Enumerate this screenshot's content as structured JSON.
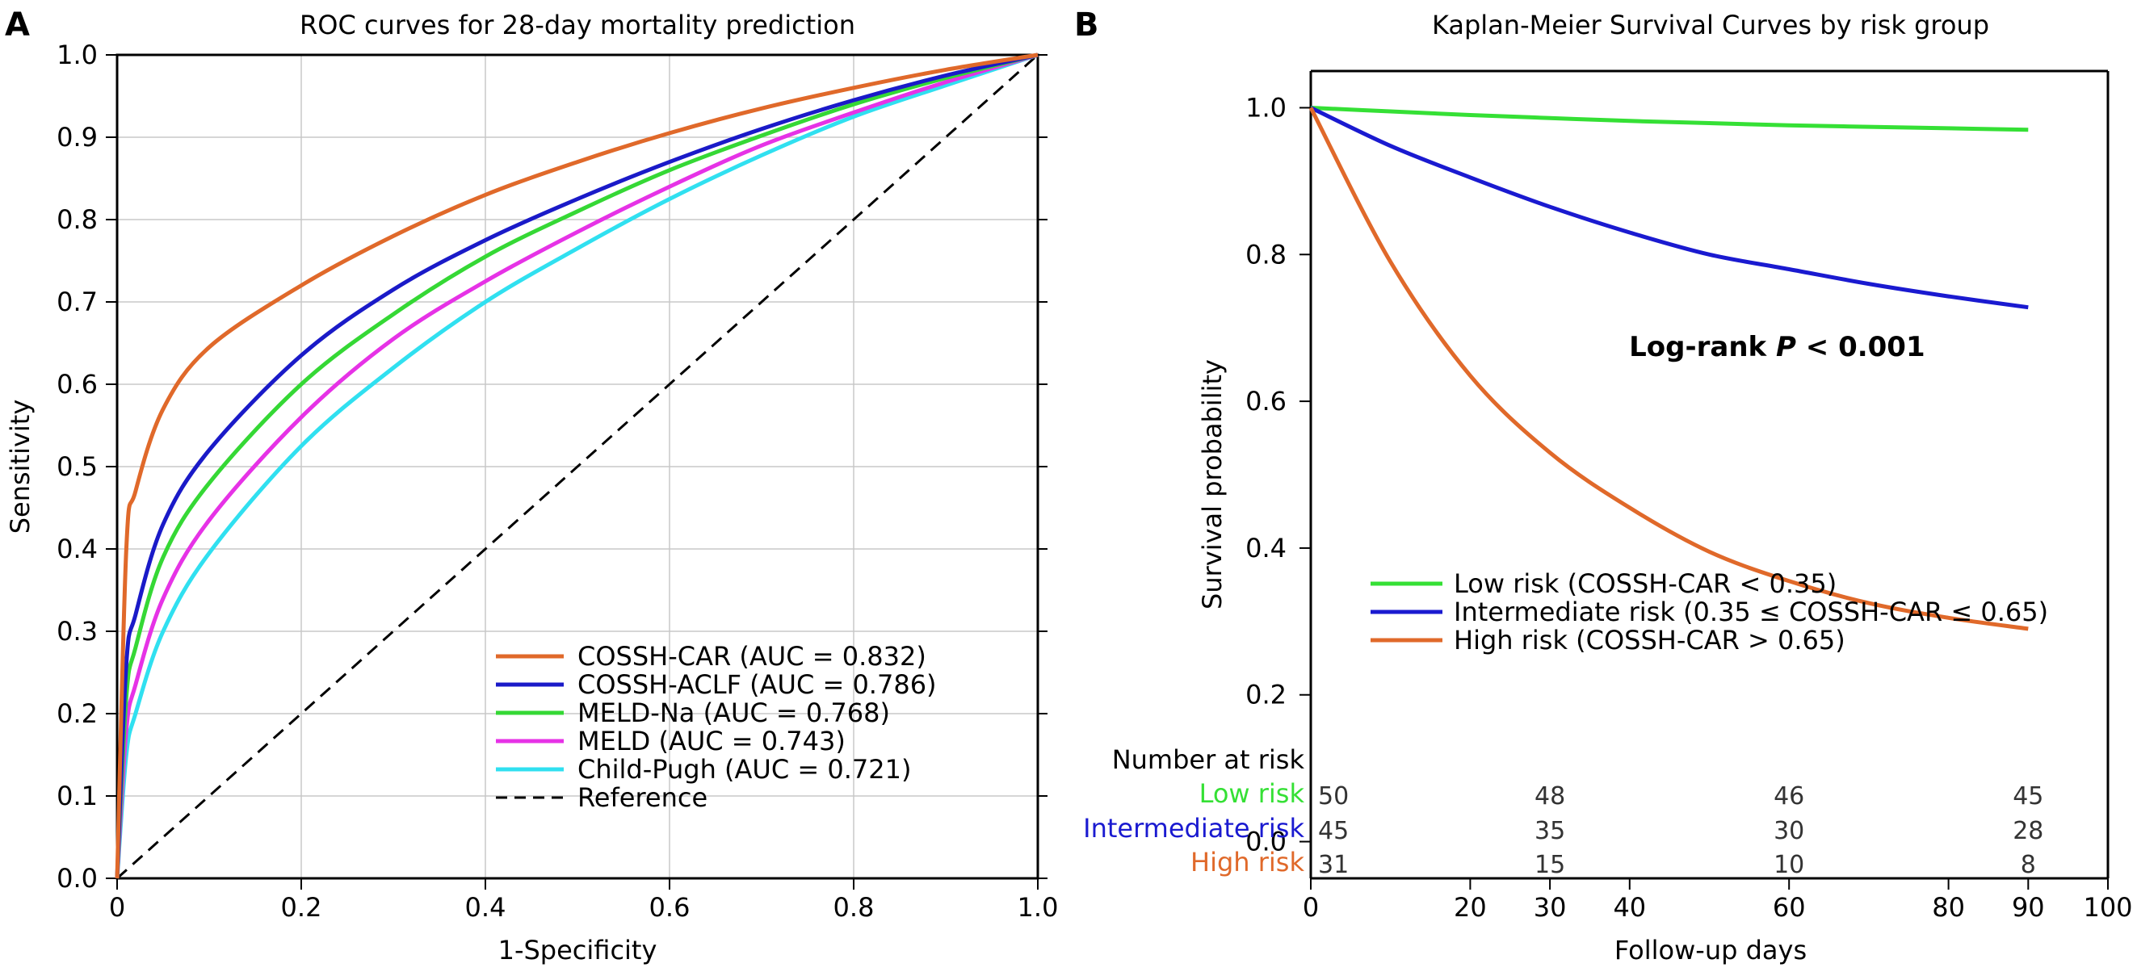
{
  "figure": {
    "panel_a_label": "A",
    "panel_b_label": "B"
  },
  "chart_data": [
    {
      "type": "line",
      "panel": "A",
      "title": "ROC curves for 28-day mortality prediction",
      "xlabel": "1-Specificity",
      "ylabel": "Sensitivity",
      "xlim": [
        0,
        1
      ],
      "ylim": [
        0,
        1
      ],
      "x_ticks": [
        "0",
        "0.2",
        "0.4",
        "0.6",
        "0.8",
        "1.0"
      ],
      "y_ticks": [
        "0.0",
        "0.1",
        "0.2",
        "0.3",
        "0.4",
        "0.5",
        "0.6",
        "0.7",
        "0.8",
        "0.9",
        "1.0"
      ],
      "grid": true,
      "legend_position": "bottom-right",
      "x": [
        0,
        0.01,
        0.02,
        0.05,
        0.1,
        0.2,
        0.3,
        0.4,
        0.5,
        0.6,
        0.7,
        0.8,
        0.9,
        1.0
      ],
      "series": [
        {
          "name": "COSSH-CAR (AUC = 0.832)",
          "color": "#e0692a",
          "values": [
            0,
            0.4,
            0.47,
            0.57,
            0.645,
            0.72,
            0.78,
            0.83,
            0.87,
            0.905,
            0.935,
            0.96,
            0.982,
            1.0
          ]
        },
        {
          "name": "COSSH-ACLF (AUC = 0.786)",
          "color": "#1a1ac8",
          "values": [
            0,
            0.26,
            0.32,
            0.43,
            0.52,
            0.635,
            0.715,
            0.775,
            0.825,
            0.87,
            0.91,
            0.945,
            0.975,
            1.0
          ]
        },
        {
          "name": "MELD-Na (AUC = 0.768)",
          "color": "#35d835",
          "values": [
            0,
            0.22,
            0.28,
            0.39,
            0.48,
            0.6,
            0.685,
            0.755,
            0.81,
            0.86,
            0.902,
            0.94,
            0.972,
            1.0
          ]
        },
        {
          "name": "MELD (AUC = 0.743)",
          "color": "#e632e6",
          "values": [
            0,
            0.18,
            0.235,
            0.34,
            0.435,
            0.56,
            0.655,
            0.725,
            0.785,
            0.84,
            0.89,
            0.93,
            0.967,
            1.0
          ]
        },
        {
          "name": "Child-Pugh (AUC = 0.721)",
          "color": "#30e0f0",
          "values": [
            0,
            0.15,
            0.2,
            0.3,
            0.395,
            0.525,
            0.62,
            0.7,
            0.765,
            0.825,
            0.878,
            0.925,
            0.963,
            1.0
          ]
        }
      ],
      "reference": {
        "name": "Reference",
        "color": "#000000",
        "style": "dashed",
        "x": [
          0,
          1
        ],
        "values": [
          0,
          1
        ]
      }
    },
    {
      "type": "line",
      "panel": "B",
      "title": "Kaplan-Meier Survival Curves by risk group",
      "xlabel": "Follow-up days",
      "ylabel": "Survival probability",
      "xlim": [
        0,
        100
      ],
      "ylim": [
        -0.05,
        1.05
      ],
      "x_ticks": [
        "0",
        "20",
        "30",
        "40",
        "60",
        "80",
        "90",
        "100"
      ],
      "x_tick_values": [
        0,
        20,
        30,
        40,
        60,
        80,
        90,
        100
      ],
      "y_ticks": [
        "0.0",
        "0.2",
        "0.4",
        "0.6",
        "0.8",
        "1.0"
      ],
      "y_tick_values": [
        0,
        0.2,
        0.4,
        0.6,
        0.8,
        1.0
      ],
      "grid": false,
      "legend_position": "bottom-right",
      "annotation": {
        "prefix": "Log-rank ",
        "italic": "P",
        "suffix": " < 0.001",
        "x": 45,
        "y": 0.675
      },
      "x": [
        0,
        10,
        20,
        30,
        40,
        50,
        60,
        70,
        80,
        90
      ],
      "series": [
        {
          "name": "Low risk (COSSH-CAR < 0.35)",
          "color": "#35e035",
          "values": [
            1.0,
            0.995,
            0.99,
            0.986,
            0.982,
            0.979,
            0.976,
            0.974,
            0.972,
            0.97
          ]
        },
        {
          "name": "Intermediate risk (0.35 ≤ COSSH-CAR ≤ 0.65)",
          "color": "#1a1ad0",
          "values": [
            1.0,
            0.948,
            0.905,
            0.865,
            0.83,
            0.8,
            0.78,
            0.76,
            0.743,
            0.728
          ]
        },
        {
          "name": "High risk (COSSH-CAR > 0.65)",
          "color": "#e0692a",
          "values": [
            1.0,
            0.79,
            0.635,
            0.53,
            0.455,
            0.395,
            0.355,
            0.325,
            0.305,
            0.29
          ]
        }
      ],
      "risk_table": {
        "header": "Number at risk",
        "time_points": [
          0,
          30,
          60,
          90
        ],
        "rows": [
          {
            "label": "Low risk",
            "color": "#35e035",
            "counts": [
              "50",
              "48",
              "46",
              "45"
            ]
          },
          {
            "label": "Intermediate risk",
            "color": "#1a1ad0",
            "counts": [
              "45",
              "35",
              "30",
              "28"
            ]
          },
          {
            "label": "High risk",
            "color": "#e0692a",
            "counts": [
              "31",
              "15",
              "10",
              "8"
            ]
          }
        ]
      }
    }
  ]
}
